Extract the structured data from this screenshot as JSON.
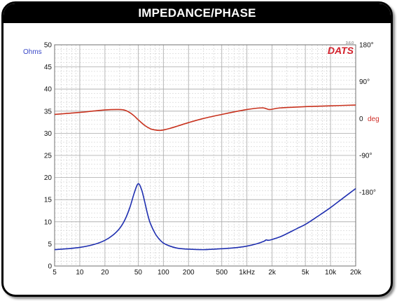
{
  "title": "IMPEDANCE/PHASE",
  "chart_data": {
    "type": "line",
    "x_scale": "log",
    "xlim": [
      5,
      20000
    ],
    "x_ticks": [
      5,
      10,
      20,
      50,
      100,
      200,
      500,
      1000,
      2000,
      5000,
      10000,
      20000
    ],
    "x_tick_labels": [
      "5",
      "10",
      "20",
      "50",
      "100",
      "200",
      "500",
      "1kHz",
      "2k",
      "5k",
      "10k",
      "20k"
    ],
    "ylim_left": [
      0,
      50
    ],
    "y_ticks_left": [
      0,
      5,
      10,
      15,
      20,
      25,
      30,
      35,
      40,
      45,
      50
    ],
    "y_tick_labels_left": [
      "0",
      "5",
      "10",
      "15",
      "20",
      "25",
      "30",
      "35",
      "40",
      "45",
      "50"
    ],
    "ylabel_left": "Ohms",
    "ylim_right": [
      -360,
      180
    ],
    "y_ticks_right": [
      180,
      90,
      0,
      -90,
      -180
    ],
    "y_tick_labels_right": [
      "180°",
      "90°",
      "0",
      "-90°",
      "-180°"
    ],
    "ylabel_right": "deg",
    "grid": true,
    "logo": "DATS",
    "logo_version": "3.6.0",
    "colors": {
      "impedance": "#1f2fb0",
      "phase": "#c8321e",
      "ohms_label": "#3a48c8",
      "deg_label": "#d0302a"
    },
    "series": [
      {
        "axis": "left",
        "x": [
          5,
          7,
          10,
          15,
          20,
          25,
          30,
          35,
          40,
          45,
          50,
          55,
          60,
          65,
          70,
          80,
          90,
          100,
          120,
          150,
          200,
          300,
          400,
          500,
          700,
          1000,
          1300,
          1600,
          1700,
          1800,
          2000,
          2500,
          3000,
          4000,
          5000,
          7000,
          10000,
          14000,
          20000
        ],
        "y": [
          3.7,
          3.9,
          4.2,
          4.9,
          5.8,
          7.0,
          8.5,
          10.6,
          13.4,
          16.6,
          18.6,
          17.2,
          14.4,
          11.6,
          9.6,
          7.3,
          6.0,
          5.2,
          4.5,
          4.0,
          3.8,
          3.7,
          3.8,
          3.9,
          4.1,
          4.5,
          5.0,
          5.6,
          5.9,
          5.8,
          6.0,
          6.6,
          7.3,
          8.5,
          9.4,
          11.2,
          13.2,
          15.3,
          17.5
        ]
      },
      {
        "axis": "right",
        "x": [
          5,
          10,
          20,
          30,
          35,
          40,
          45,
          50,
          60,
          70,
          80,
          90,
          100,
          120,
          150,
          200,
          300,
          500,
          1000,
          1500,
          1700,
          1900,
          2500,
          5000,
          10000,
          20000
        ],
        "y": [
          10,
          15,
          21,
          22,
          20,
          14,
          6,
          -3,
          -17,
          -25,
          -28,
          -29,
          -28,
          -24,
          -18,
          -10,
          0,
          10,
          22,
          26,
          24,
          22,
          26,
          29,
          31,
          33
        ]
      }
    ]
  }
}
